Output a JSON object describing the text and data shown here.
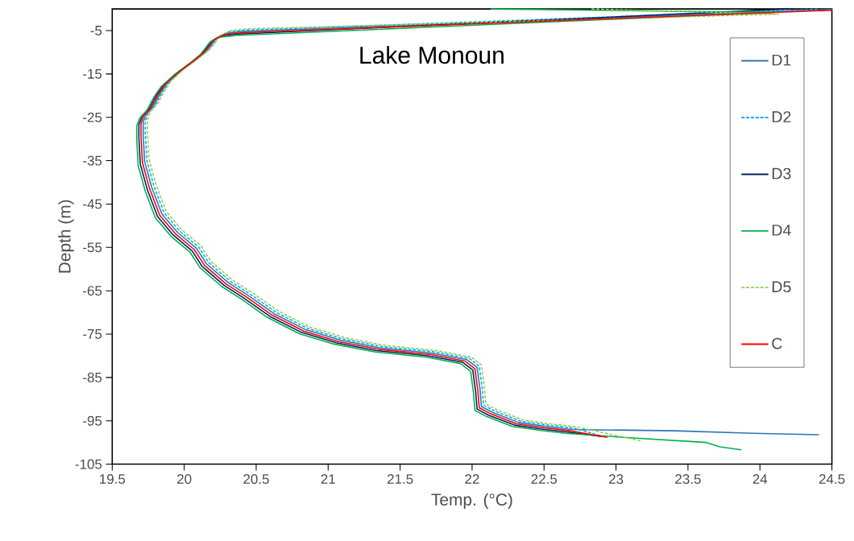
{
  "chart_data": {
    "type": "line",
    "title": "Lake Monoun",
    "xlabel": "Temp. (°C)",
    "ylabel": "Depth (m)",
    "xlim": [
      19.5,
      24.5
    ],
    "ylim": [
      -105,
      0
    ],
    "xticks": [
      19.5,
      20,
      20.5,
      21,
      21.5,
      22,
      22.5,
      23,
      23.5,
      24,
      24.5
    ],
    "yticks": [
      -5,
      -15,
      -25,
      -35,
      -45,
      -55,
      -65,
      -75,
      -85,
      -95,
      -105
    ],
    "legend": "top right",
    "marker": "none",
    "series": [
      {
        "name": "D1",
        "color": "#2e75b6",
        "line_style": "solid",
        "x": [
          24.5,
          20.405,
          20.295,
          20.225,
          20.155,
          20.085,
          19.975,
          19.885,
          19.835,
          19.785,
          19.735,
          19.715,
          19.715,
          19.725,
          19.775,
          19.845,
          19.955,
          20.085,
          20.155,
          20.305,
          20.445,
          20.625,
          20.845,
          21.085,
          21.365,
          21.725,
          21.965,
          22.035,
          22.055,
          22.065,
          22.145,
          22.325,
          22.515,
          22.695,
          23.41,
          23.96,
          24.41
        ],
        "values": [
          -0.1,
          -5.2,
          -5.6,
          -6.7,
          -9.7,
          -11.6,
          -14.3,
          -17.0,
          -19.4,
          -22.5,
          -24.3,
          -26.1,
          -29.1,
          -35.2,
          -41.2,
          -47.3,
          -51.6,
          -55.2,
          -58.8,
          -63.1,
          -66.1,
          -70.3,
          -74.0,
          -76.4,
          -78.2,
          -79.4,
          -80.9,
          -82.7,
          -87.7,
          -91.7,
          -93.1,
          -95.4,
          -96.3,
          -97.0,
          -97.3,
          -97.9,
          -98.2
        ]
      },
      {
        "name": "D2",
        "color": "#00b0f0",
        "line_style": "dashed",
        "x": [
          24.4,
          20.42,
          20.31,
          20.24,
          20.17,
          20.1,
          19.99,
          19.9,
          19.85,
          19.8,
          19.75,
          19.73,
          19.73,
          19.74,
          19.79,
          19.86,
          19.97,
          20.1,
          20.17,
          20.32,
          20.46,
          20.64,
          20.86,
          21.1,
          21.38,
          21.74,
          21.98,
          22.05,
          22.07,
          22.08,
          22.16,
          22.34,
          22.53,
          22.71,
          22.9
        ],
        "values": [
          -0.1,
          -4.9,
          -5.3,
          -6.4,
          -9.4,
          -11.3,
          -14.0,
          -16.7,
          -19.1,
          -22.2,
          -24.0,
          -25.8,
          -28.8,
          -34.9,
          -40.9,
          -47.0,
          -51.3,
          -54.9,
          -58.5,
          -62.8,
          -65.8,
          -70.0,
          -73.7,
          -76.1,
          -77.9,
          -79.1,
          -80.6,
          -82.4,
          -87.4,
          -91.4,
          -92.8,
          -95.1,
          -96.0,
          -96.7,
          -98.5
        ]
      },
      {
        "name": "D3",
        "color": "#002060",
        "line_style": "solid",
        "x": [
          24.2,
          20.375,
          20.265,
          20.195,
          20.125,
          20.055,
          19.945,
          19.855,
          19.805,
          19.755,
          19.705,
          19.685,
          19.685,
          19.695,
          19.745,
          19.815,
          19.925,
          20.055,
          20.125,
          20.275,
          20.415,
          20.595,
          20.815,
          21.055,
          21.335,
          21.695,
          21.935,
          22.005,
          22.025,
          22.035,
          22.115,
          22.295,
          22.485,
          22.665,
          22.9
        ],
        "values": [
          0,
          -5.8,
          -6.2,
          -7.3,
          -10.3,
          -12.2,
          -14.9,
          -17.6,
          -20.0,
          -23.1,
          -24.9,
          -26.7,
          -29.7,
          -35.8,
          -41.8,
          -47.9,
          -52.2,
          -55.8,
          -59.4,
          -63.7,
          -66.7,
          -70.9,
          -74.6,
          -77.0,
          -78.8,
          -80.0,
          -81.5,
          -83.3,
          -88.3,
          -92.3,
          -93.7,
          -96.0,
          -96.9,
          -97.6,
          -98.6
        ]
      },
      {
        "name": "D4",
        "color": "#00b050",
        "line_style": "solid",
        "x": [
          22.13,
          24.1,
          20.36,
          20.25,
          20.18,
          20.11,
          20.04,
          19.93,
          19.84,
          19.79,
          19.74,
          19.69,
          19.67,
          19.67,
          19.68,
          19.73,
          19.8,
          19.91,
          20.04,
          20.11,
          20.26,
          20.4,
          20.58,
          20.8,
          21.04,
          21.32,
          21.68,
          21.92,
          21.99,
          22.01,
          22.02,
          22.1,
          22.28,
          22.47,
          22.65,
          23.05,
          23.63,
          23.72,
          23.87
        ],
        "values": [
          0,
          -0.8,
          -6.1,
          -6.5,
          -7.6,
          -10.6,
          -12.5,
          -15.2,
          -17.9,
          -20.3,
          -23.4,
          -25.2,
          -27.0,
          -30.0,
          -36.1,
          -42.1,
          -48.2,
          -52.5,
          -56.1,
          -59.7,
          -64.0,
          -67.0,
          -71.2,
          -74.9,
          -77.3,
          -79.1,
          -80.3,
          -81.8,
          -83.6,
          -88.6,
          -92.6,
          -94.0,
          -96.3,
          -97.2,
          -97.9,
          -98.8,
          -100,
          -101,
          -101.7
        ]
      },
      {
        "name": "D5",
        "color": "#92d050",
        "line_style": "dashed",
        "x": [
          22.83,
          24.13,
          20.435,
          20.325,
          20.255,
          20.185,
          20.115,
          20.005,
          19.915,
          19.865,
          19.815,
          19.765,
          19.745,
          19.745,
          19.755,
          19.805,
          19.875,
          19.985,
          20.115,
          20.185,
          20.335,
          20.475,
          20.655,
          20.875,
          21.115,
          21.395,
          21.755,
          21.995,
          22.065,
          22.085,
          22.095,
          22.175,
          22.355,
          22.545,
          22.725,
          23.17
        ],
        "values": [
          0,
          -1.2,
          -4.6,
          -5.0,
          -6.1,
          -9.1,
          -11.0,
          -13.7,
          -16.4,
          -18.8,
          -21.9,
          -23.7,
          -25.5,
          -28.5,
          -34.6,
          -40.6,
          -46.7,
          -51.0,
          -54.6,
          -58.2,
          -62.5,
          -65.5,
          -69.7,
          -73.4,
          -75.8,
          -77.6,
          -78.8,
          -80.3,
          -82.1,
          -87.1,
          -91.1,
          -92.5,
          -94.8,
          -95.7,
          -96.4,
          -99.6
        ]
      },
      {
        "name": "C",
        "color": "#ff0000",
        "line_style": "solid",
        "x": [
          24.5,
          20.39,
          20.28,
          20.21,
          20.14,
          20.07,
          19.96,
          19.87,
          19.82,
          19.77,
          19.72,
          19.7,
          19.7,
          19.71,
          19.76,
          19.83,
          19.94,
          20.07,
          20.14,
          20.29,
          20.43,
          20.61,
          20.83,
          21.07,
          21.35,
          21.71,
          21.95,
          22.02,
          22.04,
          22.05,
          22.13,
          22.31,
          22.5,
          22.68,
          22.94
        ],
        "values": [
          -0.3,
          -5.5,
          -5.9,
          -7.0,
          -10.0,
          -11.9,
          -14.6,
          -17.3,
          -19.7,
          -22.8,
          -24.6,
          -26.4,
          -29.4,
          -35.5,
          -41.5,
          -47.6,
          -51.9,
          -55.5,
          -59.1,
          -63.4,
          -66.4,
          -70.6,
          -74.3,
          -76.7,
          -78.5,
          -79.7,
          -81.2,
          -83,
          -88,
          -92,
          -93.4,
          -95.7,
          -96.6,
          -97.3,
          -98.8
        ]
      }
    ]
  }
}
